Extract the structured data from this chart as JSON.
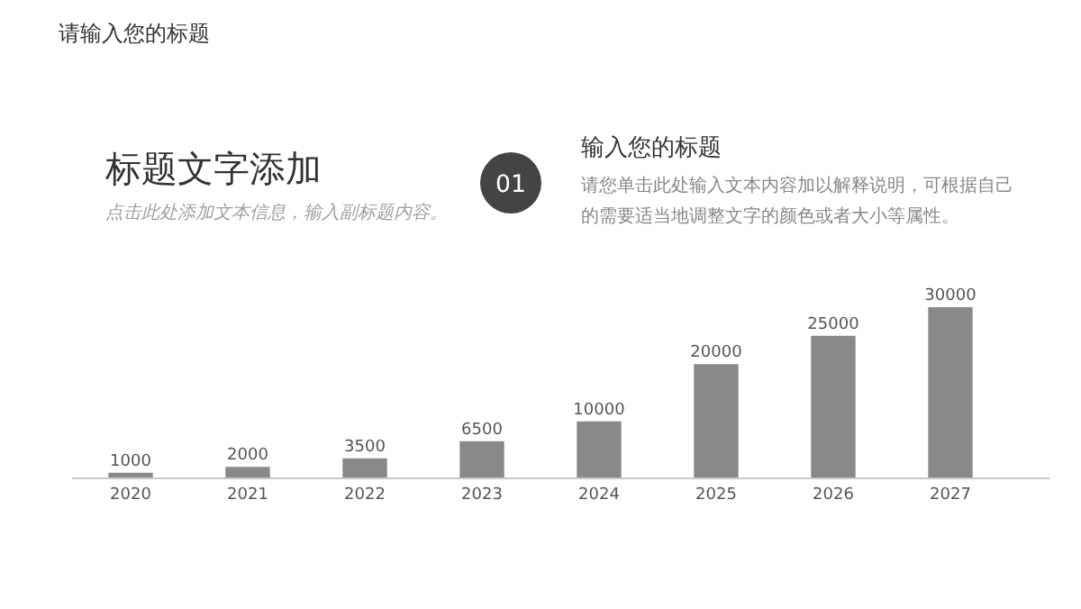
{
  "chart_data": {
    "type": "bar",
    "title": "标题文字添加",
    "subtitle": "点击此处添加文本信息，输入副标题内容。",
    "annotations": [
      "请输入您的标题",
      "01",
      "输入您的标题",
      "请您单击此处输入文本内容加以解释说明，可根据自己的需要适当地调整文字的颜色或者大小等属性。"
    ],
    "categories": [
      "2020",
      "2021",
      "2022",
      "2023",
      "2024",
      "2025",
      "2026",
      "2027"
    ],
    "values": [
      1000,
      2000,
      3500,
      6500,
      10000,
      20000,
      25000,
      30000
    ],
    "color": "#898989",
    "data_labels": true,
    "grid": false
  }
}
